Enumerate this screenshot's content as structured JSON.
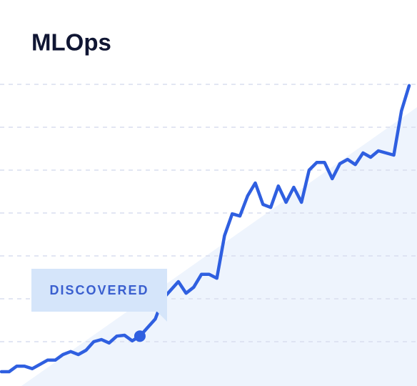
{
  "chart_data": {
    "type": "line",
    "title": "MLOps",
    "series": [
      {
        "name": "MLOps",
        "color": "#2f5fe0",
        "values": [
          0.3,
          0.3,
          0.43,
          0.43,
          0.37,
          0.47,
          0.57,
          0.57,
          0.7,
          0.77,
          0.7,
          0.8,
          1.0,
          1.05,
          0.97,
          1.13,
          1.15,
          1.02,
          1.13,
          1.33,
          1.53,
          2.0,
          2.2,
          2.4,
          2.13,
          2.27,
          2.57,
          2.57,
          2.48,
          3.47,
          3.98,
          3.93,
          4.4,
          4.7,
          4.2,
          4.13,
          4.63,
          4.25,
          4.6,
          4.25,
          5.0,
          5.18,
          5.18,
          4.8,
          5.15,
          5.25,
          5.13,
          5.4,
          5.3,
          5.45,
          5.4,
          5.35,
          6.38,
          6.97
        ]
      }
    ],
    "ylim": [
      0,
      7
    ],
    "yticks": [
      1,
      2,
      3,
      4,
      5,
      6,
      7
    ],
    "grid": true,
    "annotations": [
      {
        "text": "DISCOVERED",
        "index": 18
      }
    ]
  }
}
